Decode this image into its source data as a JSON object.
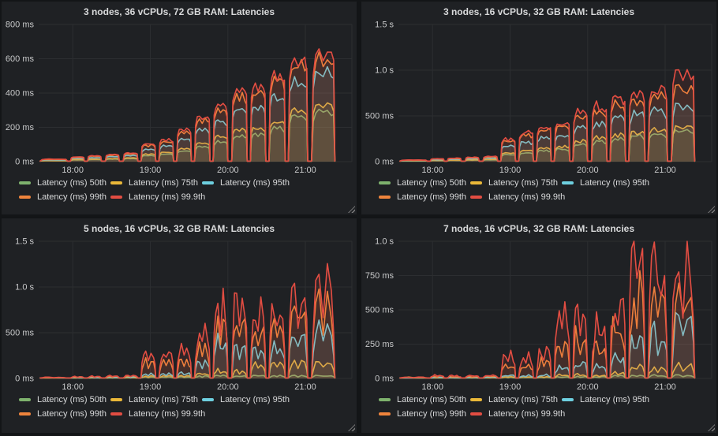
{
  "theme": {
    "page_bg": "#131517",
    "panel_bg": "#1f2124",
    "grid_color": "#2c2e31",
    "title_color": "#d8d9da",
    "tick_color": "#c8c9ca",
    "legend_text_color": "#d8d9da",
    "resize_grip_color": "#7d7d7d",
    "series_green": "#7EB26D",
    "series_yellow": "#EAB839",
    "series_cyan": "#6ED0E0",
    "series_orange": "#EF843C",
    "series_red": "#E24D42"
  },
  "chart_data": [
    {
      "type": "area",
      "title": "3 nodes, 36 vCPUs, 72 GB RAM: Latencies",
      "xlabel": "time of day",
      "ylabel": "latency",
      "unit": "ms",
      "grid": true,
      "legend_position": "bottom",
      "x_ticks": [
        "18:00",
        "19:00",
        "20:00",
        "21:00"
      ],
      "x_tick_hours": [
        18,
        19,
        20,
        21
      ],
      "x_domain_hours": [
        17.56,
        21.6
      ],
      "ylim": [
        0,
        800
      ],
      "y_ticks": [
        {
          "label": "0 ms",
          "value": 0
        },
        {
          "label": "200 ms",
          "value": 200
        },
        {
          "label": "400 ms",
          "value": 400
        },
        {
          "label": "600 ms",
          "value": 600
        },
        {
          "label": "800 ms",
          "value": 800
        }
      ],
      "burst_windows_hours": [
        [
          17.58,
          17.93
        ],
        [
          17.97,
          18.15
        ],
        [
          18.19,
          18.37
        ],
        [
          18.42,
          18.6
        ],
        [
          18.65,
          18.84
        ],
        [
          18.88,
          19.07
        ],
        [
          19.11,
          19.3
        ],
        [
          19.34,
          19.53
        ],
        [
          19.57,
          19.77
        ],
        [
          19.81,
          20.0
        ],
        [
          20.05,
          20.25
        ],
        [
          20.29,
          20.49
        ],
        [
          20.53,
          20.74
        ],
        [
          20.78,
          21.03
        ],
        [
          21.08,
          21.38
        ]
      ],
      "profile": "plateau",
      "jitter": 0.05,
      "series": [
        {
          "key": "p50",
          "name": "Latency (ms) 50th",
          "color": "#7EB26D",
          "burst_peaks_ms": [
            5,
            10,
            12,
            15,
            18,
            36,
            44,
            62,
            90,
            118,
            152,
            162,
            198,
            265,
            292
          ]
        },
        {
          "key": "p75",
          "name": "Latency (ms) 75th",
          "color": "#EAB839",
          "burst_peaks_ms": [
            6,
            12,
            14,
            18,
            22,
            44,
            55,
            78,
            112,
            148,
            188,
            198,
            238,
            305,
            330
          ]
        },
        {
          "key": "p95",
          "name": "Latency (ms) 95th",
          "color": "#6ED0E0",
          "burst_peaks_ms": [
            10,
            19,
            23,
            29,
            36,
            72,
            92,
            132,
            190,
            235,
            305,
            325,
            380,
            475,
            530
          ]
        },
        {
          "key": "p99",
          "name": "Latency (ms) 99th",
          "color": "#EF843C",
          "burst_peaks_ms": [
            13,
            25,
            31,
            38,
            47,
            96,
            118,
            172,
            245,
            300,
            385,
            405,
            475,
            575,
            610
          ]
        },
        {
          "key": "p999",
          "name": "Latency (ms) 99.9th",
          "color": "#E24D42",
          "burst_peaks_ms": [
            15,
            28,
            34,
            42,
            52,
            105,
            130,
            190,
            265,
            330,
            415,
            440,
            510,
            605,
            640
          ]
        }
      ]
    },
    {
      "type": "area",
      "title": "3 nodes, 16 vCPUs, 32 GB RAM: Latencies",
      "xlabel": "time of day",
      "ylabel": "latency",
      "unit": "ms",
      "grid": true,
      "legend_position": "bottom",
      "x_ticks": [
        "18:00",
        "19:00",
        "20:00",
        "21:00"
      ],
      "x_tick_hours": [
        18,
        19,
        20,
        21
      ],
      "x_domain_hours": [
        17.56,
        21.6
      ],
      "ylim": [
        0,
        1500
      ],
      "y_ticks": [
        {
          "label": "0 ms",
          "value": 0
        },
        {
          "label": "500 ms",
          "value": 500
        },
        {
          "label": "1.0 s",
          "value": 1000
        },
        {
          "label": "1.5 s",
          "value": 1500
        }
      ],
      "burst_windows_hours": [
        [
          17.58,
          17.93
        ],
        [
          17.97,
          18.15
        ],
        [
          18.19,
          18.37
        ],
        [
          18.42,
          18.6
        ],
        [
          18.65,
          18.84
        ],
        [
          18.88,
          19.07
        ],
        [
          19.11,
          19.3
        ],
        [
          19.34,
          19.53
        ],
        [
          19.57,
          19.77
        ],
        [
          19.81,
          20.0
        ],
        [
          20.05,
          20.25
        ],
        [
          20.29,
          20.49
        ],
        [
          20.53,
          20.74
        ],
        [
          20.78,
          21.03
        ],
        [
          21.08,
          21.38
        ]
      ],
      "profile": "plateau",
      "jitter": 0.08,
      "series": [
        {
          "key": "p50",
          "name": "Latency (ms) 50th",
          "color": "#7EB26D",
          "burst_peaks_ms": [
            6,
            11,
            13,
            17,
            20,
            76,
            96,
            120,
            138,
            188,
            218,
            248,
            278,
            298,
            338
          ]
        },
        {
          "key": "p75",
          "name": "Latency (ms) 75th",
          "color": "#EAB839",
          "burst_peaks_ms": [
            8,
            14,
            17,
            21,
            25,
            95,
            120,
            150,
            170,
            230,
            268,
            298,
            328,
            350,
            390
          ]
        },
        {
          "key": "p95",
          "name": "Latency (ms) 95th",
          "color": "#6ED0E0",
          "burst_peaks_ms": [
            12,
            22,
            26,
            33,
            40,
            168,
            212,
            265,
            290,
            375,
            425,
            475,
            525,
            555,
            620
          ]
        },
        {
          "key": "p99",
          "name": "Latency (ms) 99th",
          "color": "#EF843C",
          "burst_peaks_ms": [
            16,
            29,
            34,
            43,
            52,
            225,
            285,
            355,
            380,
            500,
            555,
            630,
            685,
            730,
            805
          ]
        },
        {
          "key": "p999",
          "name": "Latency (ms) 99.9th",
          "color": "#E24D42",
          "burst_peaks_ms": [
            18,
            32,
            38,
            48,
            58,
            250,
            320,
            395,
            420,
            555,
            615,
            700,
            755,
            810,
            1000
          ]
        }
      ]
    },
    {
      "type": "area",
      "title": "5 nodes, 16 vCPUs, 32 GB RAM: Latencies",
      "xlabel": "time of day",
      "ylabel": "latency",
      "unit": "ms",
      "grid": true,
      "legend_position": "bottom",
      "x_ticks": [
        "18:00",
        "19:00",
        "20:00",
        "21:00"
      ],
      "x_tick_hours": [
        18,
        19,
        20,
        21
      ],
      "x_domain_hours": [
        17.56,
        21.6
      ],
      "ylim": [
        0,
        1500
      ],
      "y_ticks": [
        {
          "label": "0 ms",
          "value": 0
        },
        {
          "label": "500 ms",
          "value": 500
        },
        {
          "label": "1.0 s",
          "value": 1000
        },
        {
          "label": "1.5 s",
          "value": 1500
        }
      ],
      "burst_windows_hours": [
        [
          17.58,
          17.93
        ],
        [
          17.97,
          18.15
        ],
        [
          18.19,
          18.37
        ],
        [
          18.42,
          18.6
        ],
        [
          18.65,
          18.84
        ],
        [
          18.88,
          19.07
        ],
        [
          19.11,
          19.3
        ],
        [
          19.34,
          19.53
        ],
        [
          19.57,
          19.77
        ],
        [
          19.81,
          20.0
        ],
        [
          20.05,
          20.25
        ],
        [
          20.29,
          20.49
        ],
        [
          20.53,
          20.74
        ],
        [
          20.78,
          21.03
        ],
        [
          21.08,
          21.38
        ]
      ],
      "profile": "spiky",
      "jitter": 0.22,
      "series": [
        {
          "key": "p50",
          "name": "Latency (ms) 50th",
          "color": "#7EB26D",
          "burst_peaks_ms": [
            3,
            4,
            5,
            6,
            7,
            15,
            16,
            18,
            26,
            36,
            32,
            36,
            32,
            32,
            34
          ]
        },
        {
          "key": "p75",
          "name": "Latency (ms) 75th",
          "color": "#EAB839",
          "burst_peaks_ms": [
            5,
            7,
            8,
            9,
            10,
            26,
            28,
            31,
            62,
            92,
            82,
            162,
            172,
            192,
            205
          ]
        },
        {
          "key": "p95",
          "name": "Latency (ms) 95th",
          "color": "#6ED0E0",
          "burst_peaks_ms": [
            8,
            11,
            13,
            15,
            17,
            52,
            56,
            62,
            205,
            420,
            385,
            325,
            360,
            540,
            560
          ]
        },
        {
          "key": "p99",
          "name": "Latency (ms) 99th",
          "color": "#EF843C",
          "burst_peaks_ms": [
            12,
            17,
            21,
            25,
            29,
            195,
            188,
            205,
            380,
            650,
            675,
            580,
            600,
            840,
            870
          ]
        },
        {
          "key": "p999",
          "name": "Latency (ms) 99.9th",
          "color": "#E24D42",
          "burst_peaks_ms": [
            14,
            20,
            25,
            30,
            34,
            310,
            300,
            330,
            530,
            885,
            920,
            780,
            795,
            1080,
            1130
          ]
        }
      ]
    },
    {
      "type": "area",
      "title": "7 nodes, 16 vCPUs, 32 GB RAM: Latencies",
      "xlabel": "time of day",
      "ylabel": "latency",
      "unit": "ms",
      "grid": true,
      "legend_position": "bottom",
      "x_ticks": [
        "18:00",
        "19:00",
        "20:00",
        "21:00"
      ],
      "x_tick_hours": [
        18,
        19,
        20,
        21
      ],
      "x_domain_hours": [
        17.56,
        21.6
      ],
      "ylim": [
        0,
        1000
      ],
      "y_ticks": [
        {
          "label": "0 ms",
          "value": 0
        },
        {
          "label": "250 ms",
          "value": 250
        },
        {
          "label": "500 ms",
          "value": 500
        },
        {
          "label": "750 ms",
          "value": 750
        },
        {
          "label": "1.0 s",
          "value": 1000
        }
      ],
      "burst_windows_hours": [
        [
          17.58,
          17.93
        ],
        [
          17.97,
          18.15
        ],
        [
          18.19,
          18.37
        ],
        [
          18.42,
          18.6
        ],
        [
          18.65,
          18.84
        ],
        [
          18.88,
          19.07
        ],
        [
          19.11,
          19.3
        ],
        [
          19.34,
          19.53
        ],
        [
          19.57,
          19.77
        ],
        [
          19.81,
          20.0
        ],
        [
          20.05,
          20.25
        ],
        [
          20.29,
          20.49
        ],
        [
          20.53,
          20.74
        ],
        [
          20.78,
          21.03
        ],
        [
          21.08,
          21.38
        ]
      ],
      "profile": "spiky",
      "jitter": 0.3,
      "series": [
        {
          "key": "p50",
          "name": "Latency (ms) 50th",
          "color": "#7EB26D",
          "burst_peaks_ms": [
            2,
            3,
            3,
            4,
            4,
            8,
            8,
            9,
            13,
            16,
            13,
            19,
            26,
            23,
            26
          ]
        },
        {
          "key": "p75",
          "name": "Latency (ms) 75th",
          "color": "#EAB839",
          "burst_peaks_ms": [
            3,
            5,
            5,
            6,
            6,
            13,
            12,
            13,
            26,
            32,
            26,
            42,
            92,
            72,
            112
          ]
        },
        {
          "key": "p95",
          "name": "Latency (ms) 95th",
          "color": "#6ED0E0",
          "burst_peaks_ms": [
            5,
            9,
            8,
            9,
            10,
            26,
            23,
            26,
            92,
            122,
            92,
            172,
            312,
            332,
            458
          ]
        },
        {
          "key": "p99",
          "name": "Latency (ms) 99th",
          "color": "#EF843C",
          "burst_peaks_ms": [
            8,
            18,
            15,
            18,
            20,
            112,
            102,
            122,
            262,
            362,
            262,
            422,
            648,
            622,
            698
          ]
        },
        {
          "key": "p999",
          "name": "Latency (ms) 99.9th",
          "color": "#E24D42",
          "burst_peaks_ms": [
            10,
            24,
            20,
            24,
            26,
            200,
            182,
            205,
            455,
            550,
            395,
            620,
            925,
            865,
            915
          ]
        }
      ]
    }
  ]
}
